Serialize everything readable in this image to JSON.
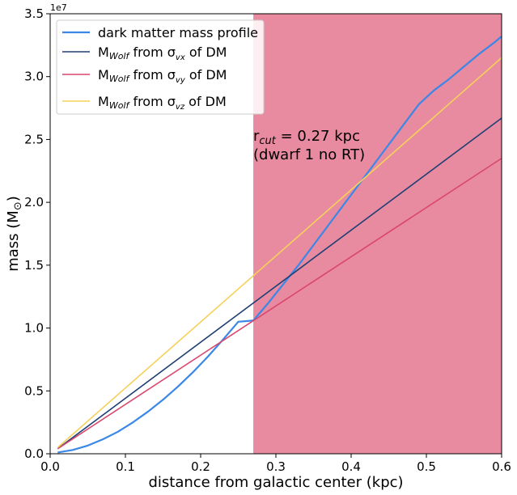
{
  "chart_data": {
    "type": "line",
    "xlabel": "distance from galactic center (kpc)",
    "ylabel_main": "mass (M",
    "ylabel_sub": "⊙",
    "ylabel_close": ")",
    "y_exponent_label": "1e7",
    "xlim": [
      0.0,
      0.6
    ],
    "ylim": [
      0,
      35000000
    ],
    "x_ticks": [
      0.0,
      0.1,
      0.2,
      0.3,
      0.4,
      0.5,
      0.6
    ],
    "x_tick_labels": [
      "0.0",
      "0.1",
      "0.2",
      "0.3",
      "0.4",
      "0.5",
      "0.6"
    ],
    "y_ticks": [
      0,
      5000000,
      10000000,
      15000000,
      20000000,
      25000000,
      30000000,
      35000000
    ],
    "y_tick_labels": [
      "0.0",
      "0.5",
      "1.0",
      "1.5",
      "2.0",
      "2.5",
      "3.0",
      "3.5"
    ],
    "grid": false,
    "legend_position": "top-left",
    "shaded_region": {
      "x_start": 0.27,
      "x_end": 0.6,
      "color": "#e88ba0"
    },
    "annotation": {
      "line1_main": "r",
      "line1_sub": "cut",
      "line1_rest": " = 0.27 kpc",
      "line2": "(dwarf 1 no RT)"
    },
    "series": [
      {
        "name": "dark matter mass profile",
        "color": "#3a87e8",
        "width": 2.2,
        "x": [
          0.01,
          0.03,
          0.05,
          0.07,
          0.09,
          0.11,
          0.13,
          0.15,
          0.17,
          0.19,
          0.21,
          0.23,
          0.25,
          0.27,
          0.29,
          0.31,
          0.33,
          0.35,
          0.37,
          0.39,
          0.41,
          0.43,
          0.45,
          0.47,
          0.49,
          0.51,
          0.53,
          0.55,
          0.57,
          0.59,
          0.6
        ],
        "y": [
          100000,
          300000,
          650000,
          1150000,
          1750000,
          2500000,
          3350000,
          4300000,
          5350000,
          6500000,
          7750000,
          9100000,
          10500000,
          10600000,
          12000000,
          13500000,
          15000000,
          16600000,
          18200000,
          19800000,
          21400000,
          23000000,
          24600000,
          26200000,
          27800000,
          28900000,
          29800000,
          30800000,
          31800000,
          32700000,
          33200000
        ]
      },
      {
        "name_prefix": "M",
        "name_sub": "Wolf",
        "name_mid": " from σ",
        "name_sub2": "vx",
        "name_suffix": " of DM",
        "color": "#1f3f74",
        "width": 1.6,
        "x": [
          0.01,
          0.6
        ],
        "y": [
          400000,
          26700000
        ]
      },
      {
        "name_prefix": "M",
        "name_sub": "Wolf",
        "name_mid": " from σ",
        "name_sub2": "vy",
        "name_suffix": " of DM",
        "color": "#d9476e",
        "width": 1.6,
        "x": [
          0.01,
          0.6
        ],
        "y": [
          400000,
          23500000
        ]
      },
      {
        "name_prefix": "M",
        "name_sub": "Wolf",
        "name_mid": " from σ",
        "name_sub2": "vz",
        "name_suffix": " of DM",
        "color": "#f5d15a",
        "width": 1.6,
        "x": [
          0.01,
          0.6
        ],
        "y": [
          500000,
          31500000
        ]
      }
    ]
  }
}
